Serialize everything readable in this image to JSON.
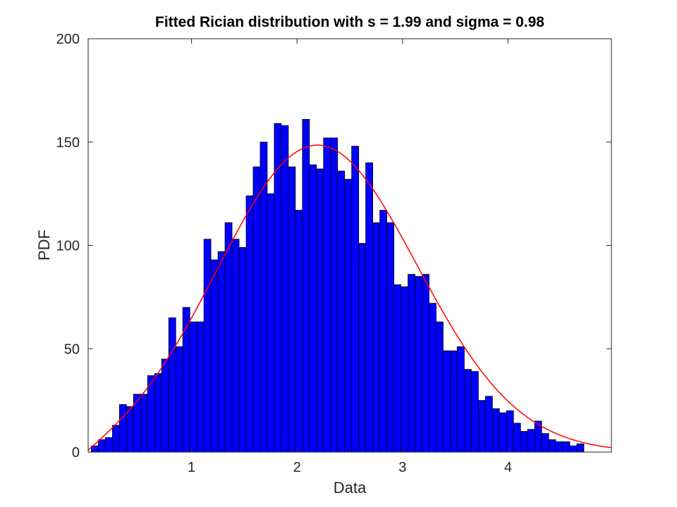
{
  "chart_data": {
    "type": "bar",
    "title": "Fitted Rician distribution with s = 1.99 and sigma = 0.98",
    "xlabel": "Data",
    "ylabel": "PDF",
    "xlim": [
      0.02,
      4.98
    ],
    "ylim": [
      0,
      200
    ],
    "xticks": [
      1,
      2,
      3,
      4
    ],
    "yticks": [
      0,
      50,
      100,
      150,
      200
    ],
    "grid": false,
    "bin_start": 0.05,
    "bin_width": 0.0667,
    "bar_color": "#0000ff",
    "edge_color": "#000000",
    "counts": [
      3,
      6,
      7,
      13,
      23,
      22,
      28,
      28,
      37,
      38,
      45,
      65,
      51,
      70,
      63,
      63,
      103,
      93,
      97,
      111,
      103,
      99,
      124,
      138,
      150,
      125,
      159,
      158,
      138,
      117,
      161,
      139,
      137,
      152,
      152,
      136,
      132,
      148,
      101,
      140,
      111,
      117,
      111,
      81,
      80,
      86,
      85,
      86,
      72,
      63,
      49,
      49,
      51,
      40,
      39,
      25,
      27,
      21,
      19,
      20,
      14,
      10,
      11,
      15,
      9,
      6,
      5,
      5,
      3,
      4
    ],
    "fit": {
      "name": "Rician fit",
      "color": "#ff0000",
      "s": 1.99,
      "sigma": 0.98,
      "peak": 148.5
    }
  }
}
